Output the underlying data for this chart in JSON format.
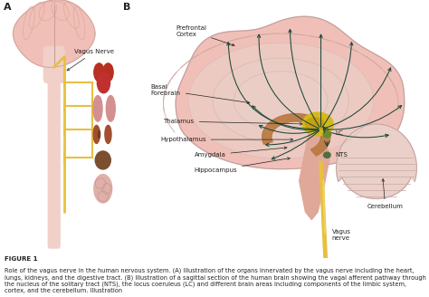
{
  "figure_label": "FIGURE 1",
  "caption": "Role of the vagus nerve in the human nervous system. (A) Illustration of the organs innervated by the vagus nerve including the heart, lungs, kidneys, and the digestive tract. (B) Illustration of a sagittal section of the human brain showing the vagal afferent pathway through the nucleus of the solitary tract (NTS), the locus coeruleus (LC) and different brain areas including components of the limbic system, cortex, and the cerebellum. Illustration",
  "panel_a_label": "A",
  "panel_b_label": "B",
  "background_color": "#ffffff",
  "brain_color": "#f0c0b8",
  "brain_inner_color": "#e8b0a8",
  "brain_gyri_color": "#e0a898",
  "nerve_color": "#e8c040",
  "nerve_color2": "#f0d060",
  "structure_brown": "#b87840",
  "thalamus_color": "#d4b820",
  "lc_color": "#6a8a30",
  "nts_color": "#4a7040",
  "arrow_color": "#1a4838",
  "organ_heart_color": "#b83020",
  "organ_lung_color": "#d49090",
  "organ_kidney_color": "#a05030",
  "organ_liver_color": "#7a5030",
  "organ_intestine_color": "#e0b0a8",
  "spinal_color": "#f0d0c8",
  "brainstem_color": "#e0a898",
  "text_color": "#222222",
  "annotation_fontsize": 5.0,
  "label_fontsize": 8,
  "caption_fontsize": 4.8
}
